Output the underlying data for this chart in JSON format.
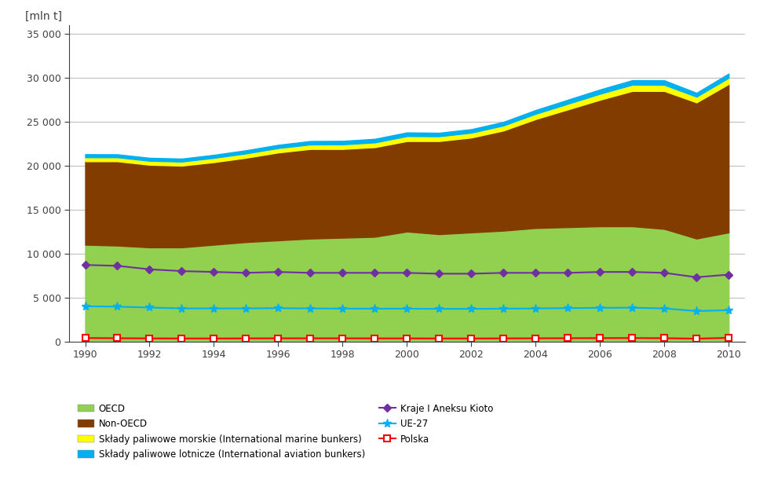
{
  "years": [
    1990,
    1991,
    1992,
    1993,
    1994,
    1995,
    1996,
    1997,
    1998,
    1999,
    2000,
    2001,
    2002,
    2003,
    2004,
    2005,
    2006,
    2007,
    2008,
    2009,
    2010
  ],
  "OECD": [
    11000,
    10900,
    10700,
    10700,
    11000,
    11300,
    11500,
    11700,
    11800,
    11900,
    12500,
    12200,
    12400,
    12600,
    12900,
    13000,
    13100,
    13100,
    12800,
    11700,
    12400
  ],
  "NonOECD": [
    9500,
    9600,
    9400,
    9300,
    9400,
    9600,
    10000,
    10200,
    10100,
    10200,
    10300,
    10600,
    10800,
    11400,
    12400,
    13400,
    14400,
    15400,
    15700,
    15500,
    16900
  ],
  "marine_bunkers": [
    450,
    450,
    450,
    460,
    480,
    490,
    500,
    510,
    520,
    540,
    560,
    540,
    550,
    570,
    600,
    640,
    680,
    710,
    700,
    650,
    700
  ],
  "aviation_bunkers": [
    350,
    340,
    340,
    340,
    350,
    360,
    370,
    390,
    400,
    410,
    420,
    400,
    400,
    410,
    430,
    460,
    490,
    510,
    510,
    440,
    480
  ],
  "annex1_kyoto": [
    8700,
    8600,
    8200,
    8000,
    7900,
    7800,
    7900,
    7800,
    7800,
    7800,
    7800,
    7700,
    7700,
    7800,
    7800,
    7800,
    7900,
    7900,
    7800,
    7300,
    7600
  ],
  "EU27": [
    4000,
    3950,
    3850,
    3750,
    3750,
    3750,
    3780,
    3750,
    3730,
    3720,
    3720,
    3700,
    3700,
    3720,
    3750,
    3780,
    3820,
    3830,
    3750,
    3450,
    3550
  ],
  "Polska": [
    380,
    360,
    340,
    330,
    330,
    340,
    350,
    350,
    350,
    340,
    340,
    330,
    330,
    340,
    350,
    360,
    370,
    380,
    360,
    310,
    400
  ],
  "OECD_color": "#92d050",
  "NonOECD_color": "#833c00",
  "marine_color": "#ffff00",
  "aviation_color": "#00b0f0",
  "annex1_color": "#7030a0",
  "EU27_color": "#00b0f0",
  "Polska_color": "#ff0000",
  "ylabel": "[mln t]",
  "ylim": [
    0,
    36000
  ],
  "yticks": [
    0,
    5000,
    10000,
    15000,
    20000,
    25000,
    30000,
    35000
  ],
  "xlim": [
    1989.5,
    2010.5
  ],
  "xticks": [
    1990,
    1992,
    1994,
    1996,
    1998,
    2000,
    2002,
    2004,
    2006,
    2008,
    2010
  ],
  "background_color": "#ffffff",
  "grid_color": "#bfbfbf"
}
